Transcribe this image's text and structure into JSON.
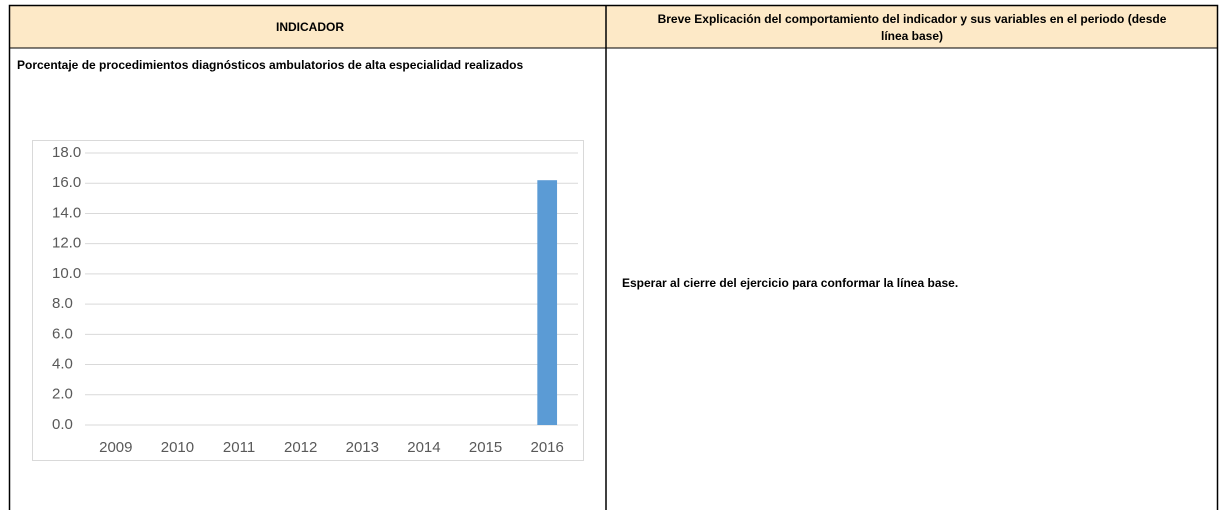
{
  "header": {
    "indicator": "INDICADOR",
    "explanation": [
      "Breve Explicación del comportamiento del indicador y sus variables en el periodo (desde",
      "línea base)"
    ]
  },
  "indicator_name": "Porcentaje de procedimientos diagnósticos ambulatorios de alta especialidad realizados",
  "explanation_text": "Esperar al cierre del ejercicio para conformar la línea base.",
  "chart_data": {
    "type": "bar",
    "categories": [
      "2009",
      "2010",
      "2011",
      "2012",
      "2013",
      "2014",
      "2015",
      "2016"
    ],
    "values": [
      0,
      0,
      0,
      0,
      0,
      0,
      0,
      16.2
    ],
    "color": "#5b9bd5",
    "ylim": [
      0,
      18
    ],
    "yticks": [
      {
        "value": 0,
        "label": "0.0"
      },
      {
        "value": 2,
        "label": "2.0"
      },
      {
        "value": 4,
        "label": "4.0"
      },
      {
        "value": 6,
        "label": "6.0"
      },
      {
        "value": 8,
        "label": "8.0"
      },
      {
        "value": 10,
        "label": "10.0"
      },
      {
        "value": 12,
        "label": "12.0"
      },
      {
        "value": 14,
        "label": "14.0"
      },
      {
        "value": 16,
        "label": "16.0"
      },
      {
        "value": 18,
        "label": "18.0"
      }
    ],
    "grid": true
  }
}
